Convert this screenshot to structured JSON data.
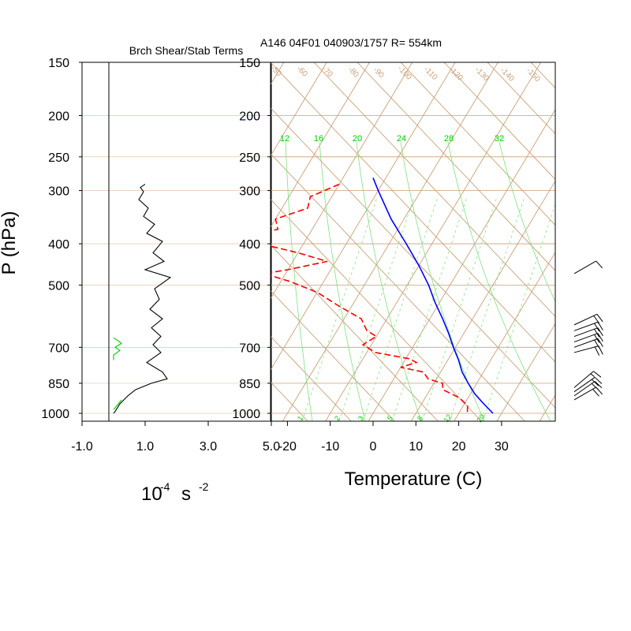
{
  "chart_data": {
    "type": "skew-t",
    "header": "A146 04F01 040903/1757 R= 554km",
    "left_panel": {
      "title": "Brch Shear/Stab Terms",
      "xticks": [
        "-1.0",
        "1.0",
        "3.0",
        "5.0"
      ],
      "xlim": [
        -1.0,
        5.0
      ],
      "units_base": "10",
      "units_exp1": "-4",
      "units_s": "s",
      "units_exp2": "-2",
      "colors": {
        "black_series": "#000000",
        "green_series": "#00cc00"
      },
      "black_series": [
        {
          "p": 290,
          "v": 1.0
        },
        {
          "p": 295,
          "v": 0.85
        },
        {
          "p": 302,
          "v": 0.95
        },
        {
          "p": 315,
          "v": 0.8
        },
        {
          "p": 330,
          "v": 1.1
        },
        {
          "p": 345,
          "v": 0.95
        },
        {
          "p": 360,
          "v": 1.3
        },
        {
          "p": 378,
          "v": 1.05
        },
        {
          "p": 395,
          "v": 1.55
        },
        {
          "p": 420,
          "v": 1.25
        },
        {
          "p": 440,
          "v": 1.6
        },
        {
          "p": 460,
          "v": 1.0
        },
        {
          "p": 480,
          "v": 1.8
        },
        {
          "p": 510,
          "v": 1.3
        },
        {
          "p": 540,
          "v": 1.45
        },
        {
          "p": 570,
          "v": 1.15
        },
        {
          "p": 600,
          "v": 1.55
        },
        {
          "p": 630,
          "v": 1.2
        },
        {
          "p": 660,
          "v": 1.5
        },
        {
          "p": 690,
          "v": 1.25
        },
        {
          "p": 720,
          "v": 1.5
        },
        {
          "p": 760,
          "v": 1.05
        },
        {
          "p": 800,
          "v": 1.55
        },
        {
          "p": 830,
          "v": 1.7
        },
        {
          "p": 850,
          "v": 1.2
        },
        {
          "p": 880,
          "v": 0.7
        },
        {
          "p": 910,
          "v": 0.45
        },
        {
          "p": 950,
          "v": 0.2
        },
        {
          "p": 990,
          "v": 0.05
        },
        {
          "p": 1000,
          "v": 0.0
        }
      ],
      "green_series_upper": [
        {
          "p": 665,
          "v": 0.0
        },
        {
          "p": 672,
          "v": 0.1
        },
        {
          "p": 685,
          "v": 0.25
        },
        {
          "p": 700,
          "v": 0.05
        },
        {
          "p": 712,
          "v": 0.2
        },
        {
          "p": 730,
          "v": 0.0
        },
        {
          "p": 750,
          "v": 0.0
        }
      ],
      "green_series_lower": [
        {
          "p": 930,
          "v": 0.25
        },
        {
          "p": 950,
          "v": 0.15
        },
        {
          "p": 980,
          "v": 0.0
        }
      ]
    },
    "main_panel": {
      "xlabel": "Temperature (C)",
      "ylabel": "P (hPa)",
      "xticks": [
        "-20",
        "-10",
        "0",
        "10",
        "20",
        "30"
      ],
      "xlim": [
        -25,
        42
      ],
      "pressure_ticks": [
        "150",
        "200",
        "250",
        "300",
        "400",
        "500",
        "700",
        "850",
        "1000"
      ],
      "ylim": [
        1050,
        150
      ],
      "grid_color": "#c8a078",
      "isotherm_labels": [
        "-50",
        "-60",
        "-70",
        "-80",
        "-90",
        "-100",
        "-110",
        "-120",
        "-130",
        "-140",
        "-150"
      ],
      "mixing_ratio_labels": [
        "1",
        "2",
        "3",
        "5",
        "8",
        "12",
        "20"
      ],
      "moist_adiabat_labels": [
        "12",
        "16",
        "20",
        "24",
        "28",
        "32"
      ],
      "colors": {
        "temperature": "#0000ff",
        "dewpoint": "#ff0000",
        "moist": "#00cc00",
        "barbs": "#000000"
      },
      "temperature": [
        {
          "p": 280,
          "t": -33
        },
        {
          "p": 300,
          "t": -30
        },
        {
          "p": 350,
          "t": -23
        },
        {
          "p": 400,
          "t": -16
        },
        {
          "p": 450,
          "t": -10
        },
        {
          "p": 500,
          "t": -5
        },
        {
          "p": 550,
          "t": -1
        },
        {
          "p": 600,
          "t": 3
        },
        {
          "p": 650,
          "t": 6.5
        },
        {
          "p": 700,
          "t": 9.5
        },
        {
          "p": 750,
          "t": 12.5
        },
        {
          "p": 800,
          "t": 15
        },
        {
          "p": 850,
          "t": 18
        },
        {
          "p": 900,
          "t": 21
        },
        {
          "p": 950,
          "t": 24.5
        },
        {
          "p": 1000,
          "t": 28
        }
      ],
      "dewpoint": [
        {
          "p": 290,
          "t": -40
        },
        {
          "p": 310,
          "t": -45
        },
        {
          "p": 330,
          "t": -44
        },
        {
          "p": 350,
          "t": -50
        },
        {
          "p": 370,
          "t": -48
        },
        {
          "p": 385,
          "t": -56
        },
        {
          "p": 400,
          "t": -50
        },
        {
          "p": 420,
          "t": -40
        },
        {
          "p": 440,
          "t": -32
        },
        {
          "p": 460,
          "t": -40
        },
        {
          "p": 470,
          "t": -45
        },
        {
          "p": 490,
          "t": -38
        },
        {
          "p": 520,
          "t": -30
        },
        {
          "p": 560,
          "t": -23
        },
        {
          "p": 600,
          "t": -16
        },
        {
          "p": 640,
          "t": -13
        },
        {
          "p": 660,
          "t": -10
        },
        {
          "p": 690,
          "t": -12
        },
        {
          "p": 720,
          "t": -8
        },
        {
          "p": 745,
          "t": 1
        },
        {
          "p": 760,
          "t": 3
        },
        {
          "p": 780,
          "t": 0
        },
        {
          "p": 800,
          "t": 6
        },
        {
          "p": 830,
          "t": 8
        },
        {
          "p": 850,
          "t": 12
        },
        {
          "p": 880,
          "t": 13
        },
        {
          "p": 920,
          "t": 18
        },
        {
          "p": 960,
          "t": 21
        },
        {
          "p": 1000,
          "t": 22
        }
      ],
      "wind_barbs": [
        {
          "p": 470,
          "dir": 240,
          "spd": 10
        },
        {
          "p": 620,
          "dir": 245,
          "spd": 20
        },
        {
          "p": 640,
          "dir": 250,
          "spd": 20
        },
        {
          "p": 660,
          "dir": 250,
          "spd": 20
        },
        {
          "p": 680,
          "dir": 250,
          "spd": 20
        },
        {
          "p": 700,
          "dir": 250,
          "spd": 20
        },
        {
          "p": 720,
          "dir": 255,
          "spd": 20
        },
        {
          "p": 870,
          "dir": 230,
          "spd": 15
        },
        {
          "p": 890,
          "dir": 235,
          "spd": 20
        },
        {
          "p": 910,
          "dir": 235,
          "spd": 20
        },
        {
          "p": 930,
          "dir": 240,
          "spd": 20
        }
      ]
    }
  }
}
